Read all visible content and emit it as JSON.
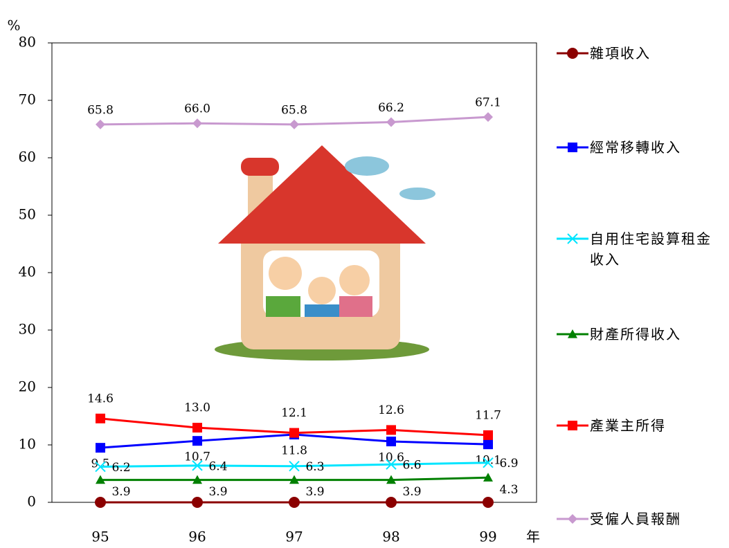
{
  "chart_data": {
    "type": "line",
    "y_label": "%",
    "x_label": "年",
    "categories": [
      "95",
      "96",
      "97",
      "98",
      "99"
    ],
    "ylim": [
      0,
      80
    ],
    "yticks": [
      0,
      10,
      20,
      30,
      40,
      50,
      60,
      70,
      80
    ],
    "legend": "right",
    "series": [
      {
        "name": "雜項收入",
        "color": "#8b0000",
        "marker": "circle",
        "values": [
          0,
          0,
          0,
          0,
          0
        ]
      },
      {
        "name": "經常移轉收入",
        "color": "#0000ff",
        "marker": "square",
        "values": [
          9.5,
          10.7,
          11.8,
          10.6,
          10.1
        ],
        "value_labels": [
          "9.5",
          "10.7",
          "11.8",
          "10.6",
          "10.1"
        ]
      },
      {
        "name": "自用住宅設算租金收入",
        "color": "#00e5ff",
        "marker": "x",
        "values": [
          6.2,
          6.4,
          6.3,
          6.6,
          6.9
        ],
        "value_labels": [
          "6.2",
          "6.4",
          "6.3",
          "6.6",
          "6.9"
        ]
      },
      {
        "name": "財產所得收入",
        "color": "#008000",
        "marker": "triangle",
        "values": [
          3.9,
          3.9,
          3.9,
          3.9,
          4.3
        ],
        "value_labels": [
          "3.9",
          "3.9",
          "3.9",
          "3.9",
          "4.3"
        ]
      },
      {
        "name": "產業主所得",
        "color": "#ff0000",
        "marker": "square",
        "values": [
          14.6,
          13.0,
          12.1,
          12.6,
          11.7
        ],
        "value_labels": [
          "14.6",
          "13.0",
          "12.1",
          "12.6",
          "11.7"
        ]
      },
      {
        "name": "受僱人員報酬",
        "color": "#c899cf",
        "marker": "diamond",
        "values": [
          65.8,
          66.0,
          65.8,
          66.2,
          67.1
        ],
        "value_labels": [
          "65.8",
          "66.0",
          "65.8",
          "66.2",
          "67.1"
        ]
      }
    ]
  }
}
